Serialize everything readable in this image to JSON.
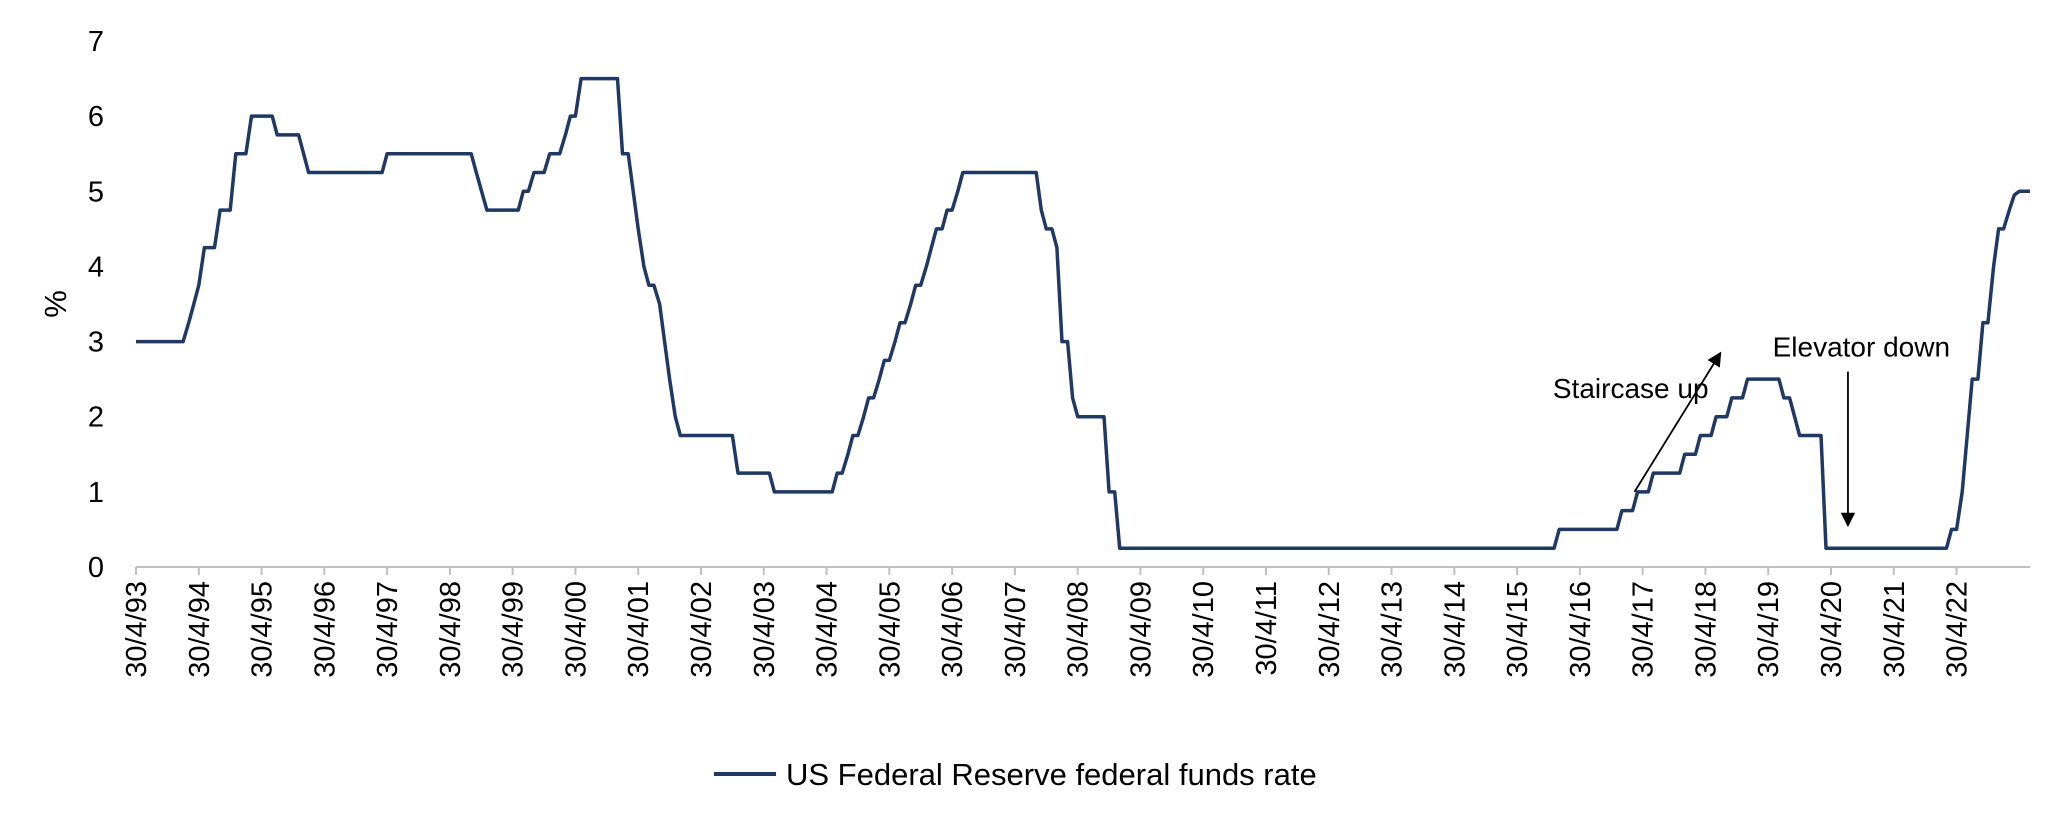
{
  "chart_data": {
    "type": "line",
    "ylabel": "%",
    "ylim": [
      0,
      7
    ],
    "yticks": [
      "0",
      "1",
      "2",
      "3",
      "4",
      "5",
      "6",
      "7"
    ],
    "xlim": [
      1993.33,
      2023.5
    ],
    "xtick_labels": [
      "30/4/93",
      "30/4/94",
      "30/4/95",
      "30/4/96",
      "30/4/97",
      "30/4/98",
      "30/4/99",
      "30/4/00",
      "30/4/01",
      "30/4/02",
      "30/4/03",
      "30/4/04",
      "30/4/05",
      "30/4/06",
      "30/4/07",
      "30/4/08",
      "30/4/09",
      "30/4/10",
      "30/4/11",
      "30/4/12",
      "30/4/13",
      "30/4/14",
      "30/4/15",
      "30/4/16",
      "30/4/17",
      "30/4/18",
      "30/4/19",
      "30/4/20",
      "30/4/21",
      "30/4/22"
    ],
    "grid": false,
    "legend_position": "bottom-center",
    "line_color": "#1f3864",
    "series": [
      {
        "name": "US Federal Reserve federal funds rate",
        "points": [
          [
            1993.33,
            3
          ],
          [
            1994.08,
            3
          ],
          [
            1994.17,
            3.25
          ],
          [
            1994.25,
            3.5
          ],
          [
            1994.33,
            3.75
          ],
          [
            1994.42,
            4.25
          ],
          [
            1994.58,
            4.25
          ],
          [
            1994.67,
            4.75
          ],
          [
            1994.83,
            4.75
          ],
          [
            1994.92,
            5.5
          ],
          [
            1995.08,
            5.5
          ],
          [
            1995.17,
            6
          ],
          [
            1995.5,
            6
          ],
          [
            1995.58,
            5.75
          ],
          [
            1995.92,
            5.75
          ],
          [
            1996.08,
            5.25
          ],
          [
            1997.25,
            5.25
          ],
          [
            1997.33,
            5.5
          ],
          [
            1998.67,
            5.5
          ],
          [
            1998.75,
            5.25
          ],
          [
            1998.92,
            4.75
          ],
          [
            1999.42,
            4.75
          ],
          [
            1999.5,
            5
          ],
          [
            1999.58,
            5
          ],
          [
            1999.67,
            5.25
          ],
          [
            1999.83,
            5.25
          ],
          [
            1999.92,
            5.5
          ],
          [
            2000.08,
            5.5
          ],
          [
            2000.17,
            5.75
          ],
          [
            2000.25,
            6
          ],
          [
            2000.33,
            6
          ],
          [
            2000.42,
            6.5
          ],
          [
            2001.0,
            6.5
          ],
          [
            2001.08,
            5.5
          ],
          [
            2001.17,
            5.5
          ],
          [
            2001.25,
            5
          ],
          [
            2001.33,
            4.5
          ],
          [
            2001.42,
            4
          ],
          [
            2001.5,
            3.75
          ],
          [
            2001.58,
            3.75
          ],
          [
            2001.67,
            3.5
          ],
          [
            2001.75,
            3
          ],
          [
            2001.83,
            2.5
          ],
          [
            2001.92,
            2
          ],
          [
            2002.0,
            1.75
          ],
          [
            2002.83,
            1.75
          ],
          [
            2002.92,
            1.25
          ],
          [
            2003.42,
            1.25
          ],
          [
            2003.5,
            1
          ],
          [
            2004.42,
            1
          ],
          [
            2004.5,
            1.25
          ],
          [
            2004.58,
            1.25
          ],
          [
            2004.67,
            1.5
          ],
          [
            2004.75,
            1.75
          ],
          [
            2004.83,
            1.75
          ],
          [
            2004.92,
            2
          ],
          [
            2005.0,
            2.25
          ],
          [
            2005.08,
            2.25
          ],
          [
            2005.17,
            2.5
          ],
          [
            2005.25,
            2.75
          ],
          [
            2005.33,
            2.75
          ],
          [
            2005.42,
            3
          ],
          [
            2005.5,
            3.25
          ],
          [
            2005.58,
            3.25
          ],
          [
            2005.67,
            3.5
          ],
          [
            2005.75,
            3.75
          ],
          [
            2005.83,
            3.75
          ],
          [
            2005.92,
            4
          ],
          [
            2006.0,
            4.25
          ],
          [
            2006.08,
            4.5
          ],
          [
            2006.17,
            4.5
          ],
          [
            2006.25,
            4.75
          ],
          [
            2006.33,
            4.75
          ],
          [
            2006.42,
            5
          ],
          [
            2006.5,
            5.25
          ],
          [
            2007.67,
            5.25
          ],
          [
            2007.75,
            4.75
          ],
          [
            2007.83,
            4.5
          ],
          [
            2007.92,
            4.5
          ],
          [
            2008.0,
            4.25
          ],
          [
            2008.08,
            3
          ],
          [
            2008.17,
            3
          ],
          [
            2008.25,
            2.25
          ],
          [
            2008.33,
            2
          ],
          [
            2008.75,
            2
          ],
          [
            2008.83,
            1
          ],
          [
            2008.92,
            1
          ],
          [
            2009.0,
            0.25
          ],
          [
            2015.92,
            0.25
          ],
          [
            2016.0,
            0.5
          ],
          [
            2016.92,
            0.5
          ],
          [
            2017.0,
            0.75
          ],
          [
            2017.17,
            0.75
          ],
          [
            2017.25,
            1
          ],
          [
            2017.42,
            1
          ],
          [
            2017.5,
            1.25
          ],
          [
            2017.92,
            1.25
          ],
          [
            2018.0,
            1.5
          ],
          [
            2018.17,
            1.5
          ],
          [
            2018.25,
            1.75
          ],
          [
            2018.42,
            1.75
          ],
          [
            2018.5,
            2
          ],
          [
            2018.67,
            2
          ],
          [
            2018.75,
            2.25
          ],
          [
            2018.92,
            2.25
          ],
          [
            2019.0,
            2.5
          ],
          [
            2019.5,
            2.5
          ],
          [
            2019.58,
            2.25
          ],
          [
            2019.67,
            2.25
          ],
          [
            2019.83,
            1.75
          ],
          [
            2020.17,
            1.75
          ],
          [
            2020.25,
            0.25
          ],
          [
            2022.17,
            0.25
          ],
          [
            2022.25,
            0.5
          ],
          [
            2022.33,
            0.5
          ],
          [
            2022.42,
            1
          ],
          [
            2022.5,
            1.75
          ],
          [
            2022.58,
            2.5
          ],
          [
            2022.67,
            2.5
          ],
          [
            2022.75,
            3.25
          ],
          [
            2022.83,
            3.25
          ],
          [
            2022.92,
            4
          ],
          [
            2023.0,
            4.5
          ],
          [
            2023.08,
            4.5
          ],
          [
            2023.17,
            4.75
          ],
          [
            2023.25,
            4.95
          ],
          [
            2023.33,
            5
          ],
          [
            2023.42,
            5
          ],
          [
            2023.5,
            5
          ]
        ]
      }
    ],
    "annotations": [
      {
        "text": "Staircase up",
        "arrow_from": [
          2017.2,
          1.0
        ],
        "arrow_to": [
          2018.57,
          2.85
        ],
        "text_x": 2015.9,
        "text_y": 2.25
      },
      {
        "text": "Elevator down",
        "arrow_from": [
          2020.6,
          2.6
        ],
        "arrow_to": [
          2020.6,
          0.55
        ],
        "text_x": 2019.4,
        "text_y": 2.8
      }
    ]
  }
}
